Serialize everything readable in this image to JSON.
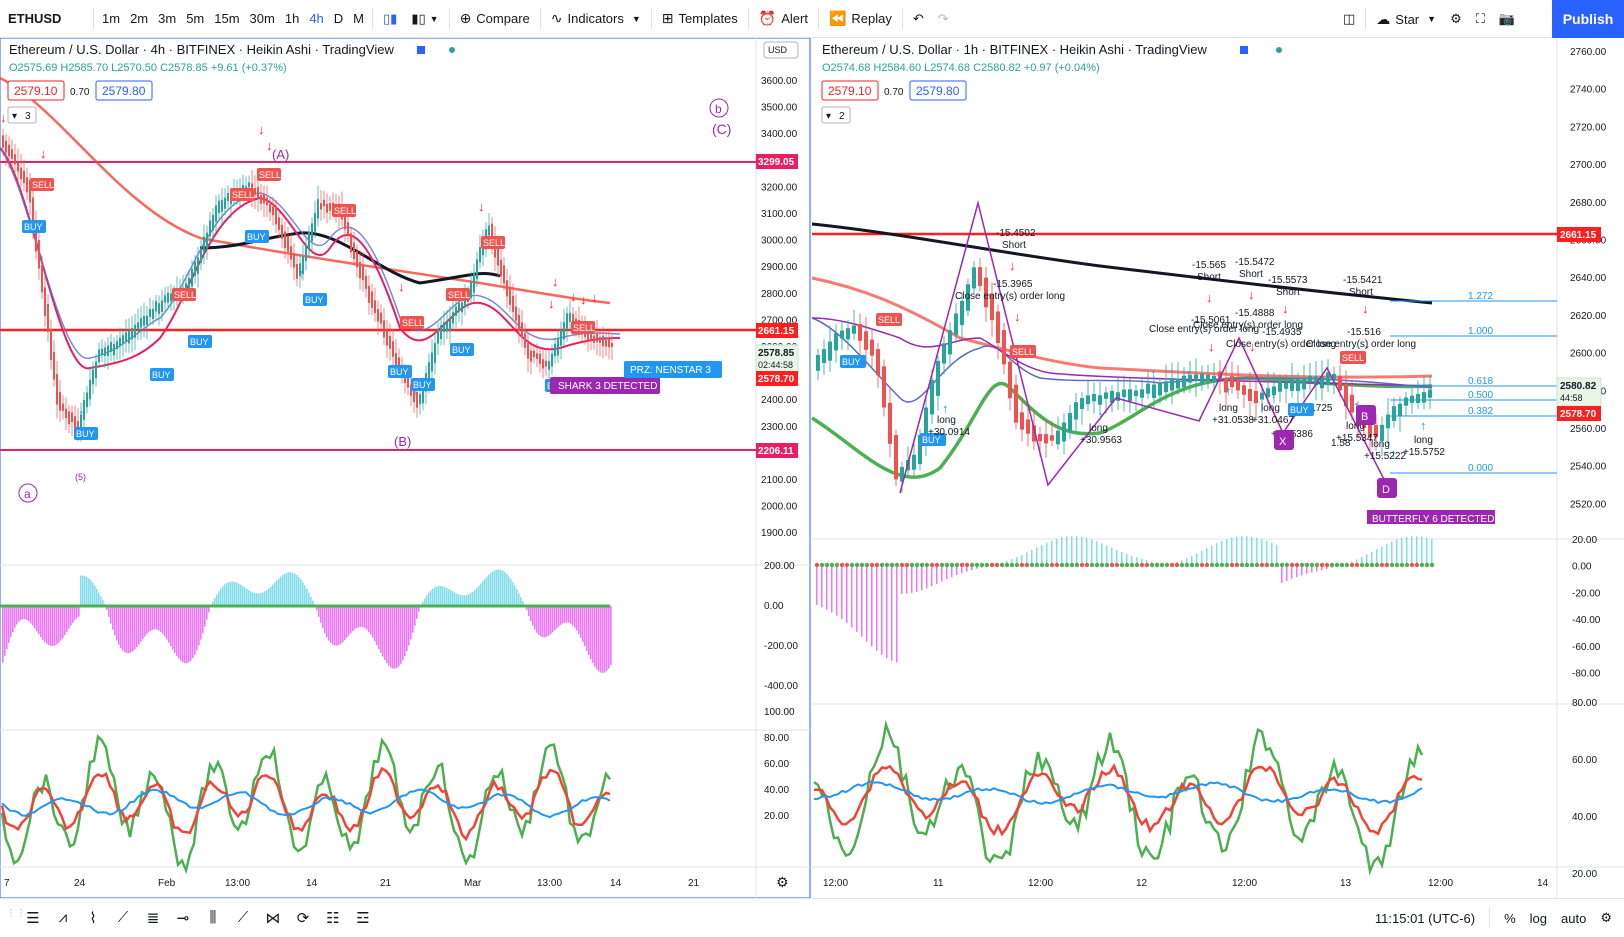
{
  "toolbar": {
    "symbol": "ETHUSD",
    "intervals": [
      "1m",
      "2m",
      "3m",
      "5m",
      "15m",
      "30m",
      "1h",
      "4h",
      "D",
      "M"
    ],
    "active_interval": "4h",
    "compare": "Compare",
    "indicators": "Indicators",
    "templates": "Templates",
    "alert": "Alert",
    "replay": "Replay",
    "star": "Star",
    "publish": "Publish"
  },
  "left_chart": {
    "title": "Ethereum / U.S. Dollar · 4h · BITFINEX · Heikin Ashi · TradingView",
    "ohlc": "O2575.69 H2585.70 L2570.50 C2578.85 +9.61 (+0.37%)",
    "bid": "2579.10",
    "spread": "0.70",
    "ask": "2579.80",
    "legend_count": "3",
    "currency": "USD",
    "price_labels": [
      "3600.00",
      "3500.00",
      "3400.00",
      "3300.00",
      "3200.00",
      "3100.00",
      "3000.00",
      "2900.00",
      "2800.00",
      "2700.00",
      "2600.00",
      "2500.00",
      "2400.00",
      "2300.00",
      "2200.00",
      "2100.00",
      "2000.00",
      "1900.00"
    ],
    "line_labels": {
      "top": "3299.05",
      "mid": "2661.15",
      "bottom": "2206.11",
      "close": "2578.85",
      "countdown": "02:44:58",
      "bid_line": "2578.70"
    },
    "osc_labels": [
      "200.00",
      "0.00",
      "-200.00",
      "-400.00"
    ],
    "rsi_labels": [
      "100.00",
      "80.00",
      "60.00",
      "40.00",
      "20.00"
    ],
    "time_labels": [
      "7",
      "24",
      "Feb",
      "13:00",
      "14",
      "21",
      "Mar",
      "13:00",
      "14",
      "21"
    ],
    "annotations": {
      "A": "(A)",
      "B": "(B)",
      "C": "(C)",
      "b": "b",
      "a": "a",
      "five": "(5)"
    },
    "pattern_labels": {
      "shark": "SHARK 3 DETECTED",
      "prz": "PRZ: NENSTAR 3"
    },
    "signal_buy": "BUY",
    "signal_sell": "SELL"
  },
  "right_chart": {
    "title": "Ethereum / U.S. Dollar · 1h · BITFINEX · Heikin Ashi · TradingView",
    "ohlc": "O2574.68 H2584.60 L2574.68 C2580.82 +0.97 (+0.04%)",
    "bid": "2579.10",
    "spread": "0.70",
    "ask": "2579.80",
    "legend_count": "2",
    "price_labels": [
      "2760.00",
      "2740.00",
      "2720.00",
      "2700.00",
      "2680.00",
      "2660.00",
      "2640.00",
      "2620.00",
      "2600.00",
      "2580.00",
      "2560.00",
      "2540.00",
      "2520.00"
    ],
    "line_labels": {
      "mid": "2661.15",
      "close": "2580.82",
      "countdown": "44:58",
      "bid_line": "2578.70"
    },
    "fib_labels": [
      "1.272",
      "1.000",
      "0.618",
      "0.500",
      "0.382",
      "0.000"
    ],
    "osc_labels": [
      "20.00",
      "0.00",
      "-20.00",
      "-40.00",
      "-60.00",
      "-80.00"
    ],
    "rsi_labels": [
      "80.00",
      "60.00",
      "40.00",
      "20.00"
    ],
    "time_labels": [
      "12:00",
      "11",
      "12:00",
      "12",
      "12:00",
      "13",
      "12:00",
      "14"
    ],
    "trade_texts": {
      "t1": "-15.4502",
      "t1b": "Short",
      "t2": "-15.3965",
      "t2b": "Close entry(s) order long",
      "t3": "-15.565",
      "t3b": "Short",
      "t4": "-15.5472",
      "t4b": "Short",
      "t5": "-15.5573",
      "t5b": "Short",
      "t6": "-15.5421",
      "t6b": "Short",
      "t7": "-15.5061",
      "t8": "-15.4888",
      "t9": "-15.4935",
      "t10": "-15.516",
      "ce1": "Close entry(s) order long",
      "ce2": "Close entry(s) order long",
      "ce3": "Close entry(s) order long",
      "ce4": "Close entry(s) order long",
      "l1": "long",
      "l1b": "+30.0914",
      "l2": "long",
      "l2b": "+30.9563",
      "l3": "long",
      "l3b": "+31.0538",
      "l4": "long",
      "l4b": "+31.0467",
      "l5": "+15.5386",
      "l6": "long",
      "l6b": "+15.5347",
      "l7": "long",
      "l7b": "+15.5222",
      "l8": "long",
      "l8b": "+15.5752",
      "tag1": ".725",
      "tag2": "1.58"
    },
    "pattern_labels": {
      "butterfly": "BUTTERFLY 6 DETECTED",
      "D": "D",
      "X": "X",
      "B": "B"
    },
    "signal_buy": "BUY",
    "signal_sell": "SELL"
  },
  "status": {
    "time": "11:15:01 (UTC-6)",
    "percent": "%",
    "log": "log",
    "auto": "auto"
  },
  "colors": {
    "accent": "#2962ff",
    "red": "#ff1f1f",
    "magenta": "#e91e63",
    "black": "#131722"
  }
}
